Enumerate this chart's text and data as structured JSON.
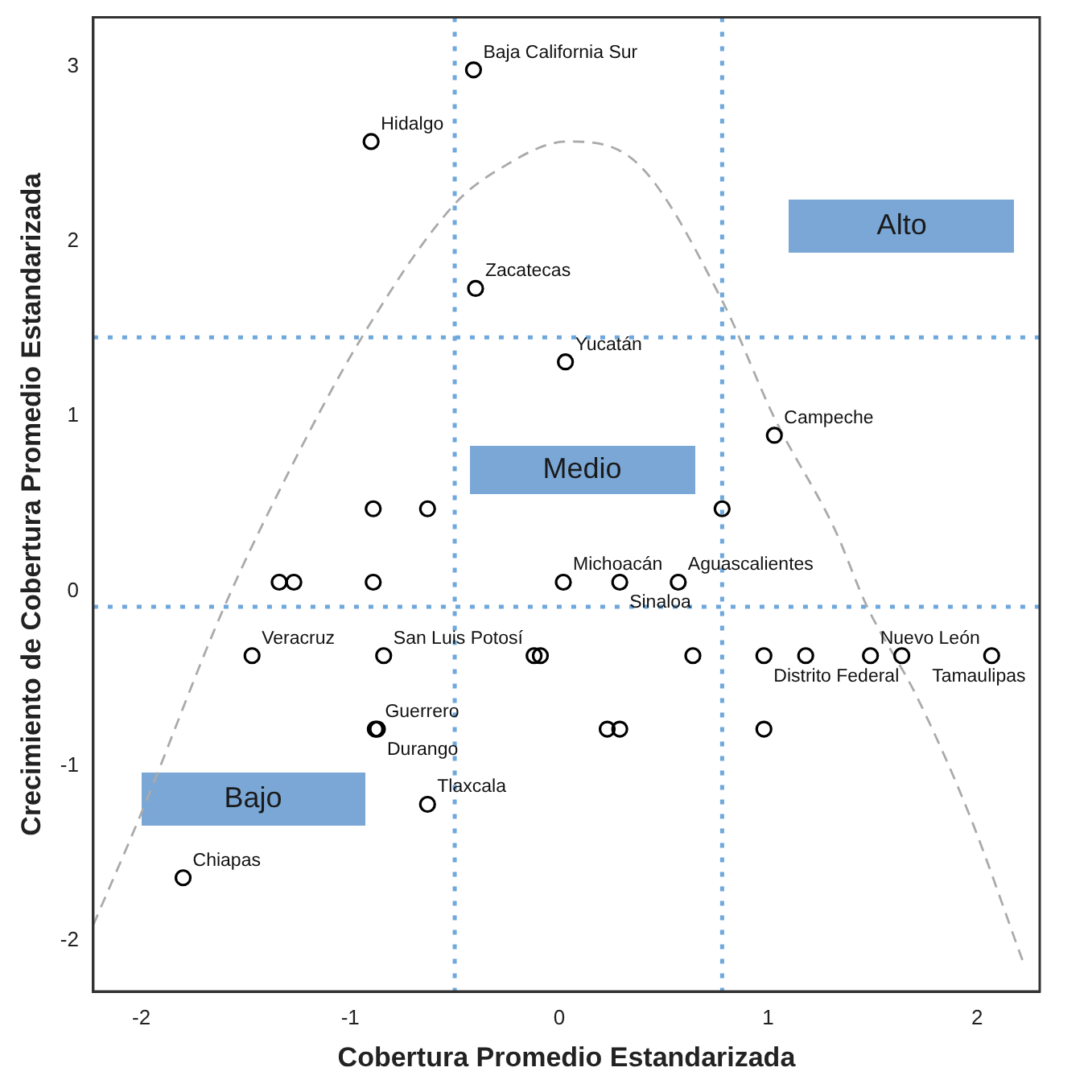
{
  "chart_data": {
    "type": "scatter",
    "xlabel": "Cobertura Promedio Estandarizada",
    "ylabel": "Crecimiento de Cobertura Promedio Estandarizada",
    "xlim": [
      -2.23,
      2.3
    ],
    "ylim": [
      -2.29,
      3.28
    ],
    "xticks": [
      -2,
      -1,
      0,
      1,
      2
    ],
    "yticks": [
      -2,
      -1,
      0,
      1,
      2,
      3
    ],
    "grid": false,
    "legend": false,
    "annotations": [
      "Alto",
      "Medio",
      "Bajo"
    ],
    "ref_lines": [
      {
        "axis": "x",
        "value": -0.5,
        "label": null,
        "color": "#6fa8dc",
        "line_style": "dotted"
      },
      {
        "axis": "x",
        "value": 0.78,
        "label": null,
        "color": "#6fa8dc",
        "line_style": "dotted"
      },
      {
        "axis": "y",
        "value": 1.45,
        "label": null,
        "color": "#6fa8dc",
        "line_style": "dotted"
      },
      {
        "axis": "y",
        "value": -0.09,
        "label": null,
        "color": "#6fa8dc",
        "line_style": "dotted"
      }
    ],
    "series": [
      {
        "color": "#000000",
        "marker": "circle",
        "x": [
          -0.41,
          -0.9,
          -0.4,
          0.03,
          1.03,
          0.78,
          -0.89,
          -0.63,
          -1.34,
          -1.27,
          -0.89,
          0.02,
          0.29,
          0.57,
          -1.47,
          -0.84,
          -0.12,
          -0.09,
          0.64,
          0.98,
          1.18,
          1.49,
          1.64,
          2.07,
          -0.88,
          -0.87,
          0.23,
          0.29,
          0.98,
          -0.63,
          -1.8
        ],
        "values": [
          2.98,
          2.57,
          1.73,
          1.31,
          0.89,
          0.47,
          0.47,
          0.47,
          0.05,
          0.05,
          0.05,
          0.05,
          0.05,
          0.05,
          -0.37,
          -0.37,
          -0.37,
          -0.37,
          -0.37,
          -0.37,
          -0.37,
          -0.37,
          -0.37,
          -0.37,
          -0.79,
          -0.79,
          -0.79,
          -0.79,
          -0.79,
          -1.22,
          -1.64
        ],
        "value_labels": [
          "Baja California Sur",
          "Hidalgo",
          "Zacatecas",
          "Yucatán",
          "Campeche",
          null,
          null,
          null,
          null,
          null,
          null,
          "Michoacán",
          "Sinaloa",
          "Aguascalientes",
          "Veracruz",
          "San Luis Potosí",
          null,
          null,
          null,
          "Distrito Federal",
          null,
          "Nuevo León",
          null,
          "Tamaulipas",
          "Guerrero",
          "Durango",
          null,
          null,
          null,
          "Tlaxcala",
          "Chiapas"
        ]
      },
      {
        "type": "line",
        "color": "#aaaaaa",
        "marker": "none",
        "line_style": "dashed",
        "x": [
          -2.23,
          -2.0,
          -1.61,
          -1.32,
          -0.95,
          -0.51,
          -0.29,
          0.04,
          0.37,
          0.78,
          1.03,
          1.32,
          1.47,
          1.71,
          1.96,
          2.22
        ],
        "values": [
          -1.91,
          -1.27,
          -0.11,
          0.62,
          1.44,
          2.2,
          2.41,
          2.57,
          2.45,
          1.66,
          0.99,
          0.35,
          -0.08,
          -0.6,
          -1.27,
          -2.12
        ]
      }
    ]
  }
}
